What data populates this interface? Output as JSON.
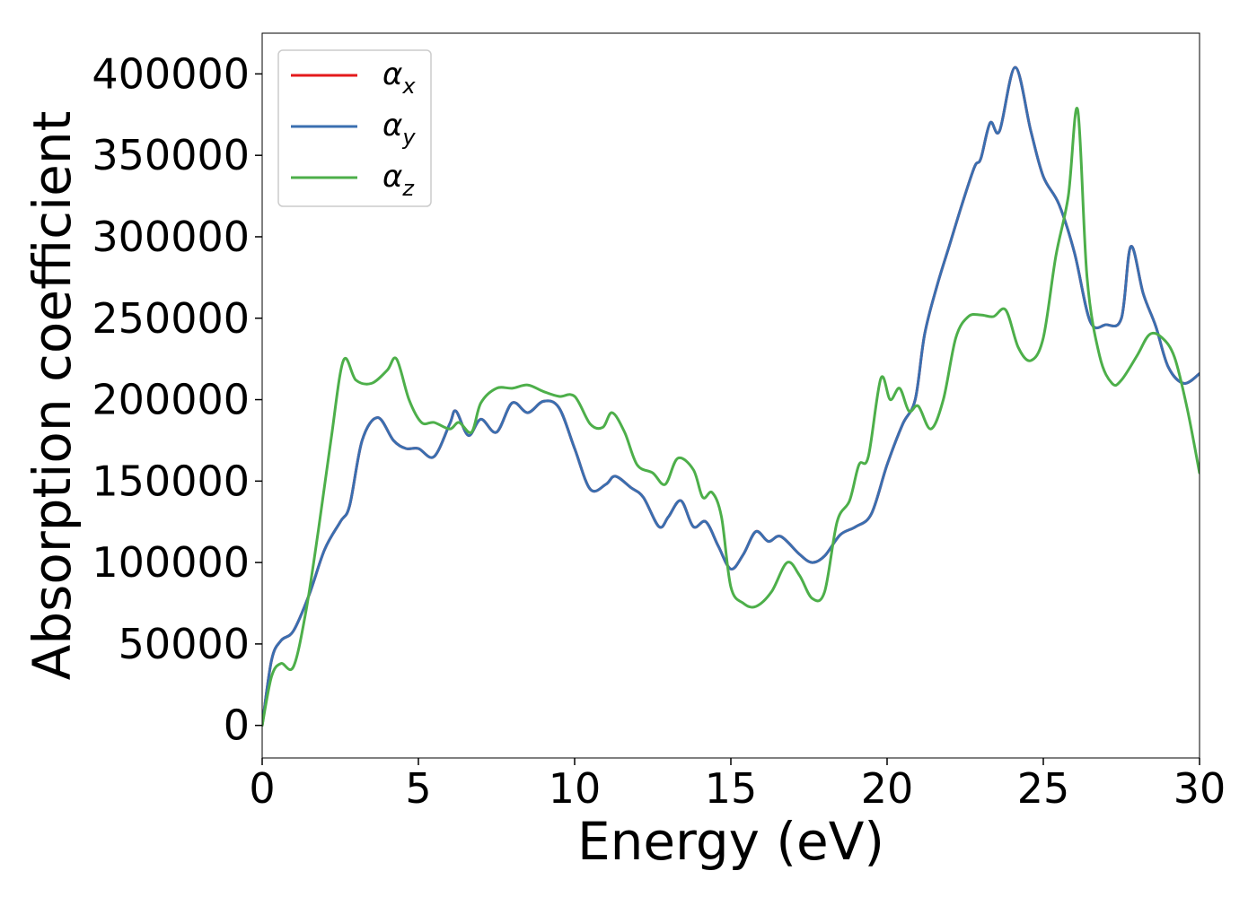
{
  "chart_data": {
    "type": "line",
    "title": "",
    "xlabel": "Energy (eV)",
    "ylabel": "Absorption coefficient",
    "xlim": [
      0,
      30
    ],
    "ylim": [
      -20000,
      425000
    ],
    "xticks": [
      0,
      5,
      10,
      15,
      20,
      25,
      30
    ],
    "yticks": [
      0,
      50000,
      100000,
      150000,
      200000,
      250000,
      300000,
      350000,
      400000
    ],
    "grid": false,
    "legend_position": "top-left",
    "series": [
      {
        "name": "α_x",
        "label_main": "α",
        "label_sub": "x",
        "color": "#e41a1c",
        "x": [
          0,
          0.3,
          0.6,
          1.0,
          1.5,
          2.0,
          2.5,
          2.8,
          3.2,
          3.7,
          4.2,
          4.6,
          5.0,
          5.5,
          6.0,
          6.2,
          6.6,
          7.0,
          7.5,
          8.0,
          8.5,
          9.0,
          9.5,
          10.0,
          10.5,
          11.0,
          11.3,
          11.8,
          12.2,
          12.7,
          13.0,
          13.4,
          13.8,
          14.2,
          14.6,
          15.0,
          15.4,
          15.8,
          16.2,
          16.6,
          17.2,
          17.6,
          18.0,
          18.5,
          19.0,
          19.5,
          20.0,
          20.5,
          20.9,
          21.2,
          21.6,
          22.0,
          22.4,
          22.8,
          23.0,
          23.3,
          23.6,
          24.1,
          24.6,
          25.0,
          25.5,
          26.0,
          26.5,
          27.0,
          27.5,
          27.8,
          28.2,
          28.6,
          29.0,
          29.5,
          30.0
        ],
        "y": [
          0,
          40000,
          52000,
          58000,
          80000,
          108000,
          125000,
          135000,
          175000,
          189000,
          175000,
          170000,
          170000,
          165000,
          185000,
          193000,
          178000,
          188000,
          180000,
          198000,
          192000,
          199000,
          195000,
          170000,
          145000,
          148000,
          153000,
          146000,
          140000,
          122000,
          128000,
          138000,
          122000,
          125000,
          110000,
          96000,
          105000,
          119000,
          113000,
          116000,
          105000,
          100000,
          104000,
          117000,
          122000,
          130000,
          160000,
          185000,
          200000,
          240000,
          270000,
          295000,
          320000,
          343000,
          348000,
          370000,
          365000,
          404000,
          365000,
          337000,
          320000,
          290000,
          248000,
          246000,
          250000,
          294000,
          265000,
          245000,
          220000,
          210000,
          216000
        ]
      },
      {
        "name": "α_y",
        "label_main": "α",
        "label_sub": "y",
        "color": "#3a6fb0",
        "x": [
          0,
          0.3,
          0.6,
          1.0,
          1.5,
          2.0,
          2.5,
          2.8,
          3.2,
          3.7,
          4.2,
          4.6,
          5.0,
          5.5,
          6.0,
          6.2,
          6.6,
          7.0,
          7.5,
          8.0,
          8.5,
          9.0,
          9.5,
          10.0,
          10.5,
          11.0,
          11.3,
          11.8,
          12.2,
          12.7,
          13.0,
          13.4,
          13.8,
          14.2,
          14.6,
          15.0,
          15.4,
          15.8,
          16.2,
          16.6,
          17.2,
          17.6,
          18.0,
          18.5,
          19.0,
          19.5,
          20.0,
          20.5,
          20.9,
          21.2,
          21.6,
          22.0,
          22.4,
          22.8,
          23.0,
          23.3,
          23.6,
          24.1,
          24.6,
          25.0,
          25.5,
          26.0,
          26.5,
          27.0,
          27.5,
          27.8,
          28.2,
          28.6,
          29.0,
          29.5,
          30.0
        ],
        "y": [
          0,
          40000,
          52000,
          58000,
          80000,
          108000,
          125000,
          135000,
          175000,
          189000,
          175000,
          170000,
          170000,
          165000,
          185000,
          193000,
          178000,
          188000,
          180000,
          198000,
          192000,
          199000,
          195000,
          170000,
          145000,
          148000,
          153000,
          146000,
          140000,
          122000,
          128000,
          138000,
          122000,
          125000,
          110000,
          96000,
          105000,
          119000,
          113000,
          116000,
          105000,
          100000,
          104000,
          117000,
          122000,
          130000,
          160000,
          185000,
          200000,
          240000,
          270000,
          295000,
          320000,
          343000,
          348000,
          370000,
          365000,
          404000,
          365000,
          337000,
          320000,
          290000,
          248000,
          246000,
          250000,
          294000,
          265000,
          245000,
          220000,
          210000,
          216000
        ]
      },
      {
        "name": "α_z",
        "label_main": "α",
        "label_sub": "z",
        "color": "#4daf4a",
        "x": [
          0,
          0.3,
          0.6,
          1.0,
          1.4,
          1.8,
          2.2,
          2.6,
          3.0,
          3.5,
          4.0,
          4.3,
          4.7,
          5.1,
          5.5,
          6.0,
          6.3,
          6.7,
          7.0,
          7.5,
          8.0,
          8.5,
          9.0,
          9.5,
          10.0,
          10.5,
          10.9,
          11.2,
          11.6,
          12.0,
          12.5,
          12.9,
          13.3,
          13.8,
          14.1,
          14.4,
          14.7,
          15.0,
          15.4,
          15.8,
          16.3,
          16.8,
          17.2,
          17.6,
          18.0,
          18.4,
          18.8,
          19.1,
          19.4,
          19.8,
          20.1,
          20.4,
          20.7,
          21.0,
          21.4,
          21.8,
          22.2,
          22.6,
          23.0,
          23.4,
          23.8,
          24.2,
          24.6,
          25.0,
          25.4,
          25.8,
          26.1,
          26.4,
          26.8,
          27.2,
          27.5,
          28.0,
          28.4,
          28.8,
          29.2,
          29.6,
          30.0
        ],
        "y": [
          0,
          30000,
          38000,
          36000,
          70000,
          120000,
          175000,
          224000,
          212000,
          210000,
          218000,
          225000,
          200000,
          186000,
          186000,
          182000,
          186000,
          180000,
          198000,
          207000,
          207000,
          209000,
          205000,
          202000,
          202000,
          185000,
          183000,
          192000,
          180000,
          160000,
          155000,
          148000,
          164000,
          157000,
          140000,
          143000,
          128000,
          85000,
          75000,
          73000,
          82000,
          100000,
          92000,
          78000,
          82000,
          125000,
          138000,
          160000,
          165000,
          213000,
          200000,
          207000,
          193000,
          196000,
          182000,
          200000,
          238000,
          251000,
          252000,
          251000,
          255000,
          232000,
          224000,
          238000,
          288000,
          325000,
          378000,
          275000,
          227000,
          210000,
          212000,
          227000,
          240000,
          238000,
          226000,
          195000,
          155000
        ]
      }
    ]
  }
}
